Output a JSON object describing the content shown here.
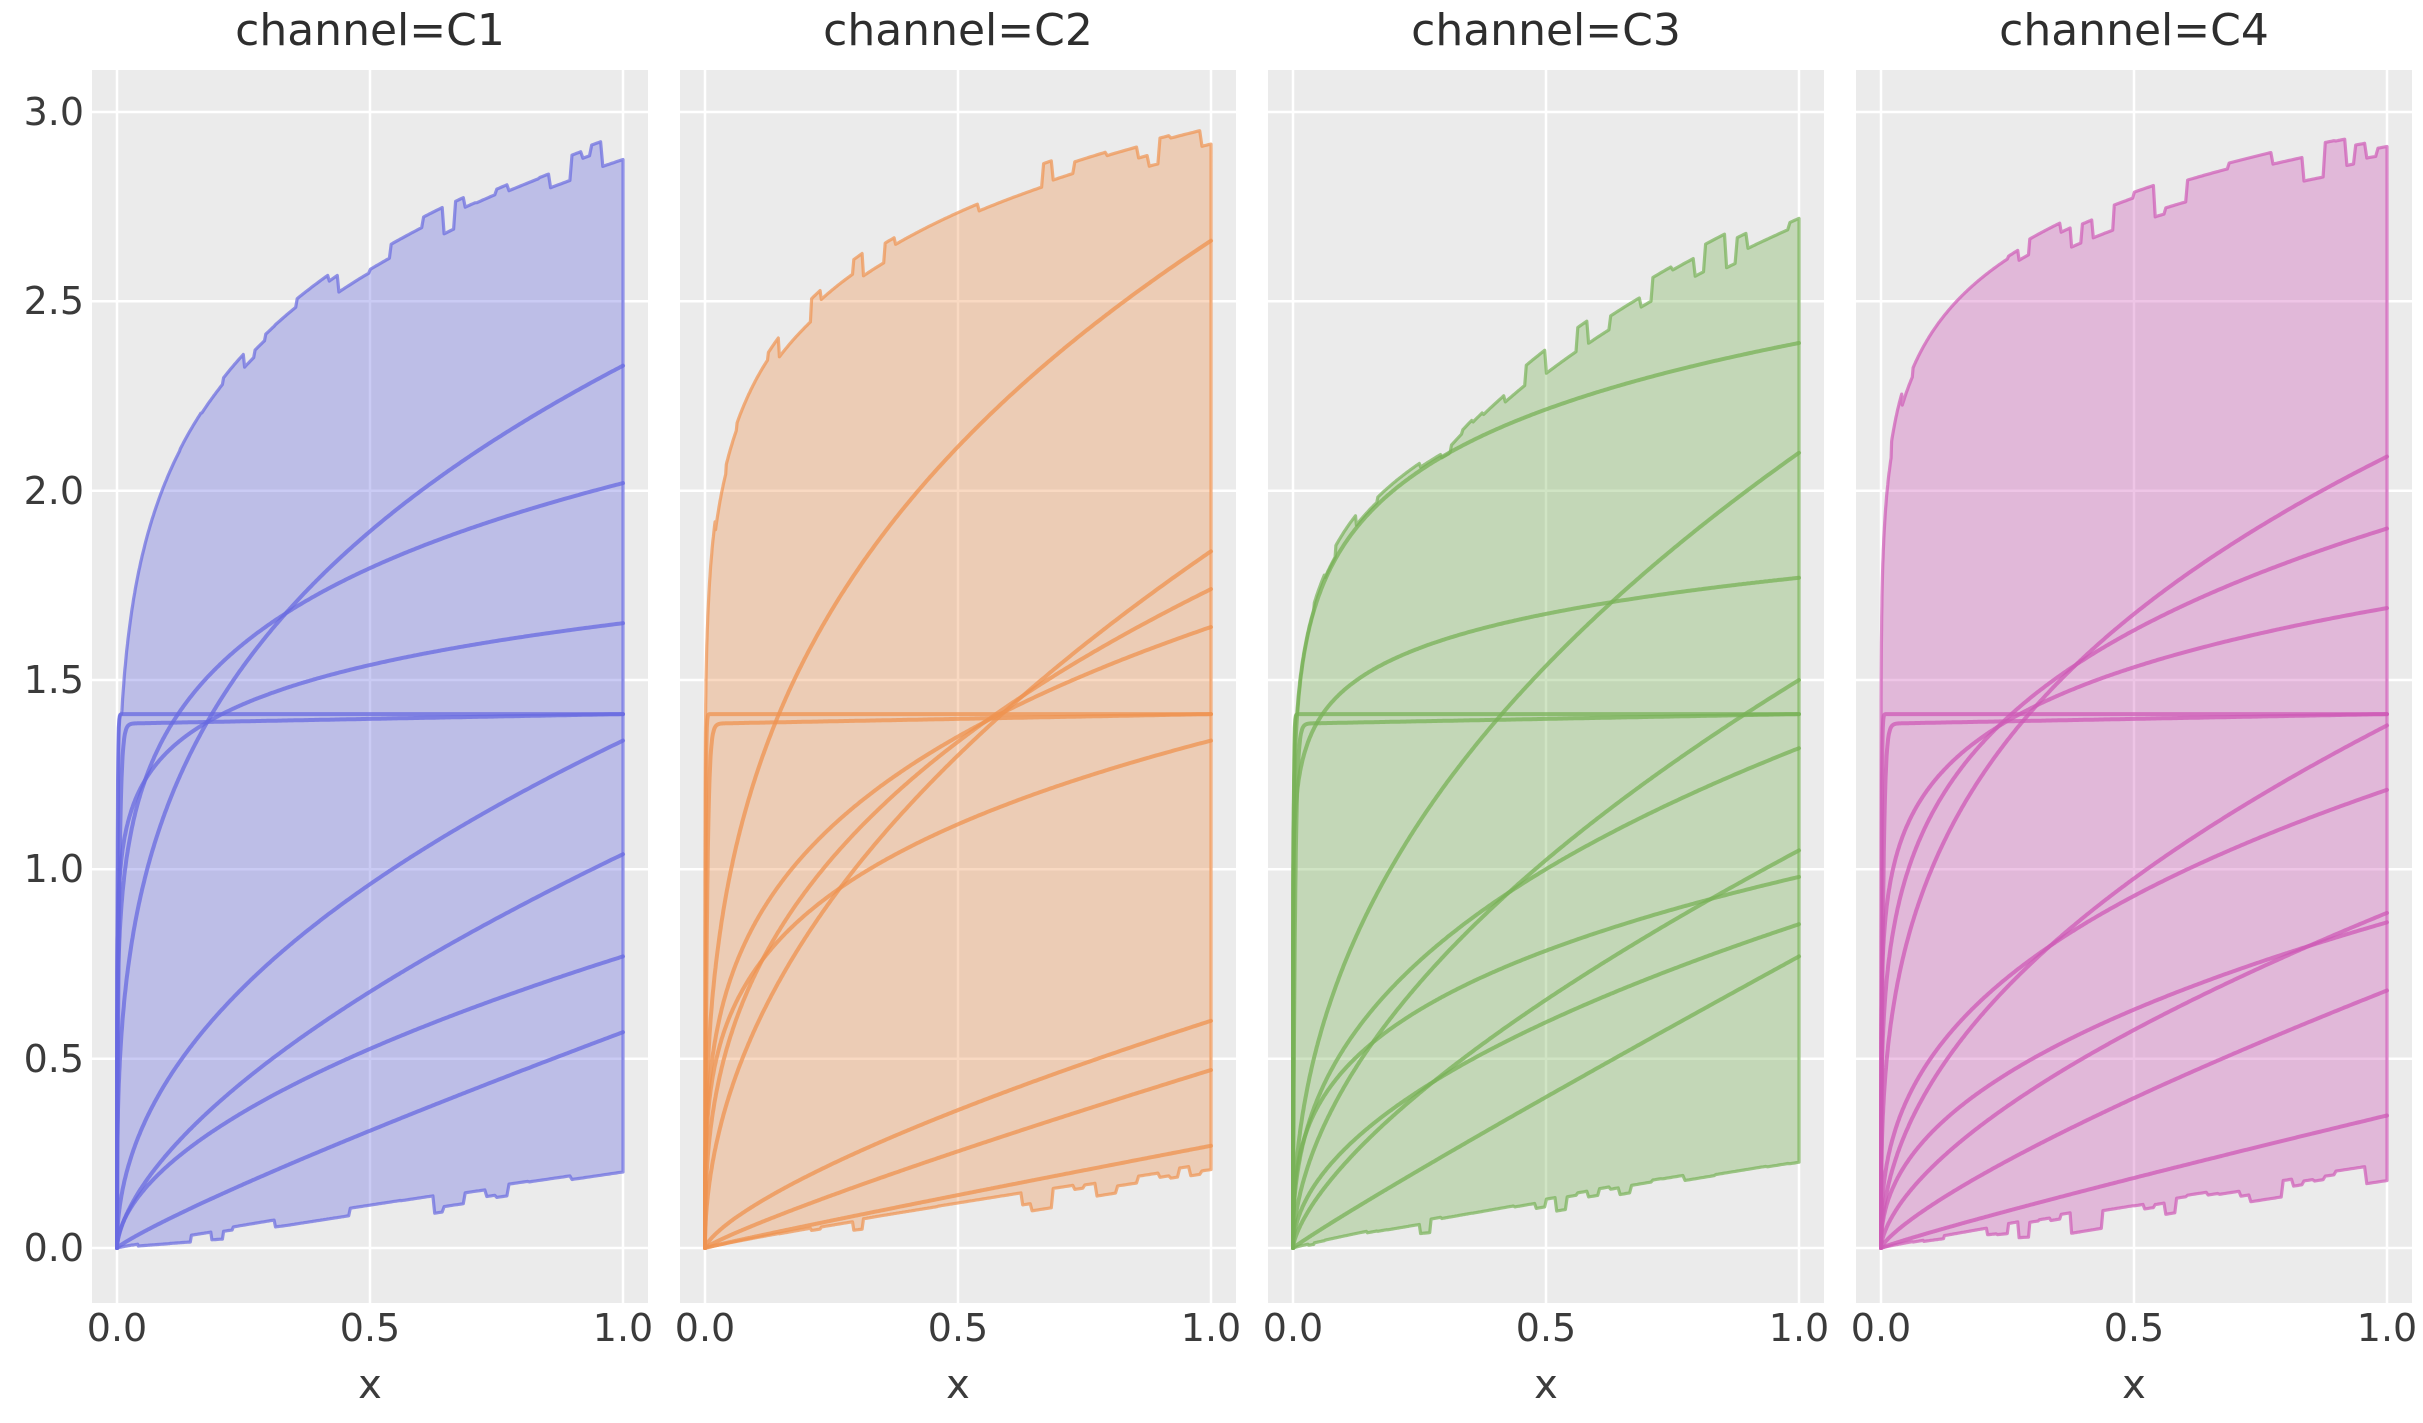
{
  "style": {
    "figure_bg": "#ffffff",
    "axes_bg": "#ebebeb",
    "grid_color": "#ffffff",
    "title_color": "#2e2e2e",
    "tick_color": "#3b3b3b"
  },
  "axis": {
    "xlabel": "x",
    "xticks": [
      "0.0",
      "0.5",
      "1.0"
    ],
    "xtick_values": [
      0,
      0.5,
      1
    ],
    "yticks": [
      "3.0",
      "2.5",
      "2.0",
      "1.5",
      "1.0",
      "0.5",
      "0.0"
    ],
    "ytick_values": [
      3.0,
      2.5,
      2.0,
      1.5,
      1.0,
      0.5,
      0.0
    ],
    "x_range": [
      0,
      1
    ],
    "y_range": [
      0,
      3
    ]
  },
  "chart_data": {
    "type": "line",
    "facet_by": "channel",
    "grid": true,
    "x_range": [
      0,
      1
    ],
    "y_range": [
      0,
      3
    ],
    "description": "Each facet shows a family of saturating power-law curves y = A*x^b rising from the origin, one flat step line at y=1.41, and a shaded min-max envelope band with jittered edges reaching the listed top value at x=1.",
    "facets": [
      {
        "title": "channel=C1",
        "channel": "C1",
        "color": "#686ae0",
        "seed": 11,
        "power_curves": [
          [
            2.33,
            0.3
          ],
          [
            2.02,
            0.17
          ],
          [
            1.65,
            0.1
          ],
          [
            1.34,
            0.48
          ],
          [
            1.04,
            0.62
          ],
          [
            0.77,
            0.55
          ],
          [
            0.57,
            0.88
          ]
        ],
        "flat_line_y": 1.41,
        "step_curve_y": 1.41,
        "band": {
          "top": [
            2.91,
            0.155
          ],
          "bottom": [
            0.21,
            0.93
          ],
          "top_at_x1": 2.91,
          "bottom_at_x1": 0.19,
          "fill_alpha": 0.35,
          "noise_top": 0.016,
          "noise_bottom": 0.055
        }
      },
      {
        "title": "channel=C2",
        "channel": "C2",
        "color": "#ef9350",
        "seed": 23,
        "power_curves": [
          [
            2.66,
            0.33
          ],
          [
            1.84,
            0.5
          ],
          [
            1.74,
            0.38
          ],
          [
            1.64,
            0.28
          ],
          [
            1.34,
            0.26
          ],
          [
            0.6,
            0.72
          ],
          [
            0.47,
            0.88
          ],
          [
            0.27,
            0.95
          ]
        ],
        "flat_line_y": 1.41,
        "step_curve_y": 1.41,
        "band": {
          "top": [
            2.95,
            0.11
          ],
          "bottom": [
            0.22,
            0.93
          ],
          "top_at_x1": 2.94,
          "bottom_at_x1": 0.18,
          "fill_alpha": 0.35,
          "noise_top": 0.018,
          "noise_bottom": 0.055
        }
      },
      {
        "title": "channel=C3",
        "channel": "C3",
        "color": "#78b257",
        "seed": 37,
        "power_curves": [
          [
            2.39,
            0.11
          ],
          [
            2.1,
            0.45
          ],
          [
            1.77,
            0.08
          ],
          [
            1.5,
            0.55
          ],
          [
            1.32,
            0.4
          ],
          [
            1.05,
            0.68
          ],
          [
            0.98,
            0.32
          ],
          [
            0.855,
            0.52
          ],
          [
            0.77,
            0.95
          ]
        ],
        "flat_line_y": 1.41,
        "step_curve_y": 1.41,
        "band": {
          "top": [
            2.72,
            0.22
          ],
          "bottom": [
            0.24,
            0.9
          ],
          "top_at_x1": 2.71,
          "bottom_at_x1": 0.22,
          "fill_alpha": 0.35,
          "noise_top": 0.02,
          "noise_bottom": 0.05
        }
      },
      {
        "title": "channel=C4",
        "channel": "C4",
        "color": "#ce5ab6",
        "seed": 53,
        "power_curves": [
          [
            2.09,
            0.32
          ],
          [
            1.9,
            0.22
          ],
          [
            1.69,
            0.14
          ],
          [
            1.38,
            0.5
          ],
          [
            1.21,
            0.38
          ],
          [
            0.885,
            0.62
          ],
          [
            0.86,
            0.45
          ],
          [
            0.68,
            0.78
          ],
          [
            0.35,
            0.92
          ]
        ],
        "flat_line_y": 1.41,
        "step_curve_y": 1.41,
        "band": {
          "top": [
            2.91,
            0.085
          ],
          "bottom": [
            0.22,
            0.92
          ],
          "top_at_x1": 2.9,
          "bottom_at_x1": 0.2,
          "fill_alpha": 0.35,
          "noise_top": 0.018,
          "noise_bottom": 0.06
        }
      }
    ]
  }
}
